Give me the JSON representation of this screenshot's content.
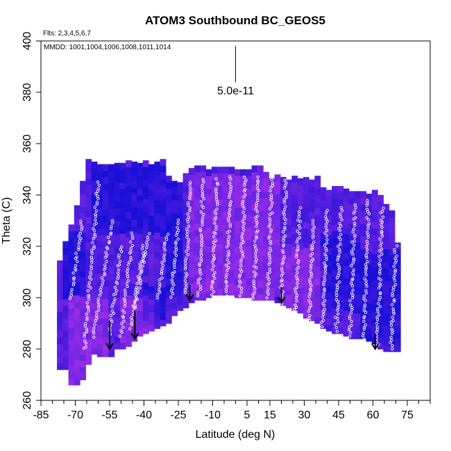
{
  "chart_data": {
    "type": "heatmap",
    "title": "ATOM3 Southbound BC_GEOS5",
    "flights_note": "Flts: 2,3,4,5,6,7",
    "mmdd_note": "MMDD: 1001,1004,1006,1008,1011,1014",
    "xlabel": "Latitude (deg N)",
    "ylabel": "Theta (C)",
    "xlim": [
      -85,
      85
    ],
    "ylim": [
      260,
      400
    ],
    "x_ticks": [
      -85,
      -70,
      -55,
      -40,
      -25,
      -10,
      5,
      15,
      30,
      45,
      60,
      75
    ],
    "y_ticks": [
      260,
      280,
      300,
      320,
      340,
      360,
      380,
      400
    ],
    "scale_bar": {
      "label": "5.0e-11",
      "x": 0,
      "y_top": 398,
      "y_bottom": 384
    },
    "colors": {
      "low": "#1a10d8",
      "high": "#9a2ee8",
      "point": "#ffffff",
      "arrow": "#000000"
    },
    "upper_boundary": [
      [
        -78,
        310
      ],
      [
        -75,
        318
      ],
      [
        -73,
        324
      ],
      [
        -71,
        330
      ],
      [
        -69,
        336
      ],
      [
        -67,
        342
      ],
      [
        -65,
        352
      ],
      [
        -30,
        352
      ],
      [
        -29,
        345
      ],
      [
        -22,
        345
      ],
      [
        -21,
        350
      ],
      [
        12,
        350
      ],
      [
        14,
        346
      ],
      [
        18,
        347
      ],
      [
        22,
        346
      ],
      [
        37,
        345
      ],
      [
        38,
        342
      ],
      [
        50,
        342
      ],
      [
        52,
        340
      ],
      [
        62,
        340
      ],
      [
        66,
        336
      ],
      [
        70,
        330
      ],
      [
        71,
        318
      ],
      [
        72,
        306
      ],
      [
        73,
        300
      ],
      [
        73,
        282
      ]
    ],
    "lower_boundary": [
      [
        73,
        279
      ],
      [
        66,
        279
      ],
      [
        58,
        284
      ],
      [
        50,
        285
      ],
      [
        42,
        287
      ],
      [
        34,
        291
      ],
      [
        25,
        296
      ],
      [
        18,
        299
      ],
      [
        8,
        300
      ],
      [
        0,
        301
      ],
      [
        -10,
        301
      ],
      [
        -18,
        299
      ],
      [
        -26,
        294
      ],
      [
        -30,
        290
      ],
      [
        -33,
        289
      ],
      [
        -38,
        287
      ],
      [
        -44,
        284
      ],
      [
        -48,
        281
      ],
      [
        -52,
        280
      ],
      [
        -55,
        277
      ],
      [
        -58,
        277
      ],
      [
        -62,
        279
      ],
      [
        -68,
        266
      ],
      [
        -72,
        266
      ],
      [
        -74,
        272
      ],
      [
        -77,
        272
      ],
      [
        -78,
        276
      ]
    ],
    "cell_grid": {
      "dx": 2.5,
      "dy": 2.5
    },
    "tracer_scale": 5e-11,
    "blue_zones": [
      {
        "lon": [
          -62,
          -30
        ],
        "theta": [
          325,
          352
        ]
      },
      {
        "lon": [
          -30,
          -22
        ],
        "theta": [
          300,
          345
        ]
      },
      {
        "lon": [
          36,
          55
        ],
        "theta": [
          295,
          325
        ]
      },
      {
        "lon": [
          55,
          72
        ],
        "theta": [
          282,
          318
        ]
      },
      {
        "lon": [
          -76,
          -66
        ],
        "theta": [
          300,
          326
        ]
      },
      {
        "lon": [
          -40,
          -30
        ],
        "theta": [
          292,
          305
        ]
      }
    ],
    "purple_zones": [
      {
        "lon": [
          -20,
          20
        ],
        "theta": [
          300,
          348
        ]
      },
      {
        "lon": [
          -72,
          -56
        ],
        "theta": [
          266,
          300
        ]
      },
      {
        "lon": [
          20,
          40
        ],
        "theta": [
          292,
          320
        ]
      },
      {
        "lon": [
          -50,
          -36
        ],
        "theta": [
          282,
          300
        ]
      }
    ],
    "profiles": [
      {
        "x0": -72,
        "x1": -67,
        "t0": 300,
        "t1": 330
      },
      {
        "x0": -66,
        "x1": -60,
        "t0": 280,
        "t1": 345
      },
      {
        "x0": -62,
        "x1": -54,
        "t0": 285,
        "t1": 330
      },
      {
        "x0": -55,
        "x1": -50,
        "t0": 286,
        "t1": 320
      },
      {
        "x0": -50,
        "x1": -45,
        "t0": 285,
        "t1": 325
      },
      {
        "x0": -46,
        "x1": -40,
        "t0": 288,
        "t1": 320
      },
      {
        "x0": -44,
        "x1": -38,
        "t0": 296,
        "t1": 325
      },
      {
        "x0": -34,
        "x1": -30,
        "t0": 300,
        "t1": 325
      },
      {
        "x0": -28,
        "x1": -25,
        "t0": 300,
        "t1": 330
      },
      {
        "x0": -22,
        "x1": -20,
        "t0": 302,
        "t1": 345
      },
      {
        "x0": -16,
        "x1": -14,
        "t0": 301,
        "t1": 346
      },
      {
        "x0": -10,
        "x1": -8,
        "t0": 301,
        "t1": 346
      },
      {
        "x0": -4,
        "x1": -2,
        "t0": 301,
        "t1": 347
      },
      {
        "x0": 2,
        "x1": 4,
        "t0": 301,
        "t1": 347
      },
      {
        "x0": 8,
        "x1": 10,
        "t0": 300,
        "t1": 347
      },
      {
        "x0": 14,
        "x1": 16,
        "t0": 300,
        "t1": 346
      },
      {
        "x0": 20,
        "x1": 22,
        "t0": 298,
        "t1": 346
      },
      {
        "x0": 26,
        "x1": 28,
        "t0": 294,
        "t1": 335
      },
      {
        "x0": 32,
        "x1": 34,
        "t0": 291,
        "t1": 330
      },
      {
        "x0": 38,
        "x1": 40,
        "t0": 289,
        "t1": 334
      },
      {
        "x0": 44,
        "x1": 46,
        "t0": 287,
        "t1": 335
      },
      {
        "x0": 50,
        "x1": 52,
        "t0": 285,
        "t1": 336
      },
      {
        "x0": 56,
        "x1": 58,
        "t0": 284,
        "t1": 338
      },
      {
        "x0": 62,
        "x1": 64,
        "t0": 282,
        "t1": 335
      },
      {
        "x0": 68,
        "x1": 70,
        "t0": 280,
        "t1": 320
      }
    ],
    "arrows": [
      {
        "x": -55,
        "theta_top": 291,
        "theta_tip": 280
      },
      {
        "x": -44,
        "theta_top": 295,
        "theta_tip": 284
      },
      {
        "x": -20,
        "theta_top": 305,
        "theta_tip": 299
      },
      {
        "x": 20,
        "theta_top": 304,
        "theta_tip": 298
      },
      {
        "x": 61,
        "theta_top": 286,
        "theta_tip": 280
      }
    ]
  }
}
